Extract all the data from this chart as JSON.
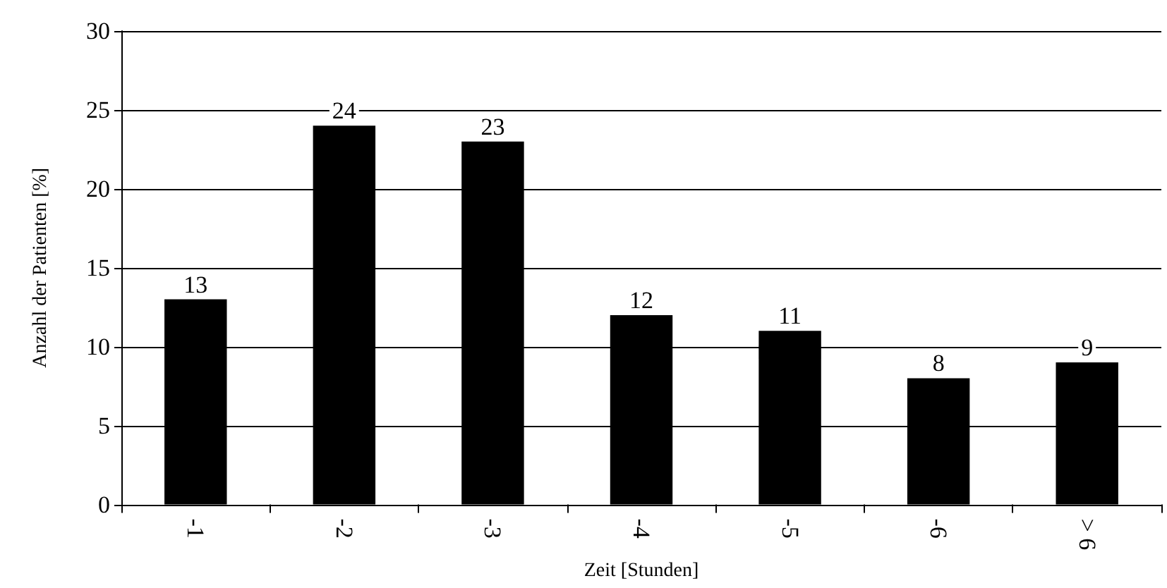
{
  "chart_data": {
    "type": "bar",
    "xlabel": "Zeit [Stunden]",
    "ylabel": "Anzahl der Patienten [%]",
    "categories": [
      "-1",
      "-2",
      "-3",
      "-4",
      "-5",
      "-6",
      "> 6"
    ],
    "values": [
      13,
      24,
      23,
      12,
      11,
      8,
      9
    ],
    "color": "#000000",
    "ylim": [
      0,
      30
    ],
    "yticks": [
      0,
      5,
      10,
      15,
      20,
      25,
      30
    ],
    "grid": "y",
    "data_labels": true
  }
}
